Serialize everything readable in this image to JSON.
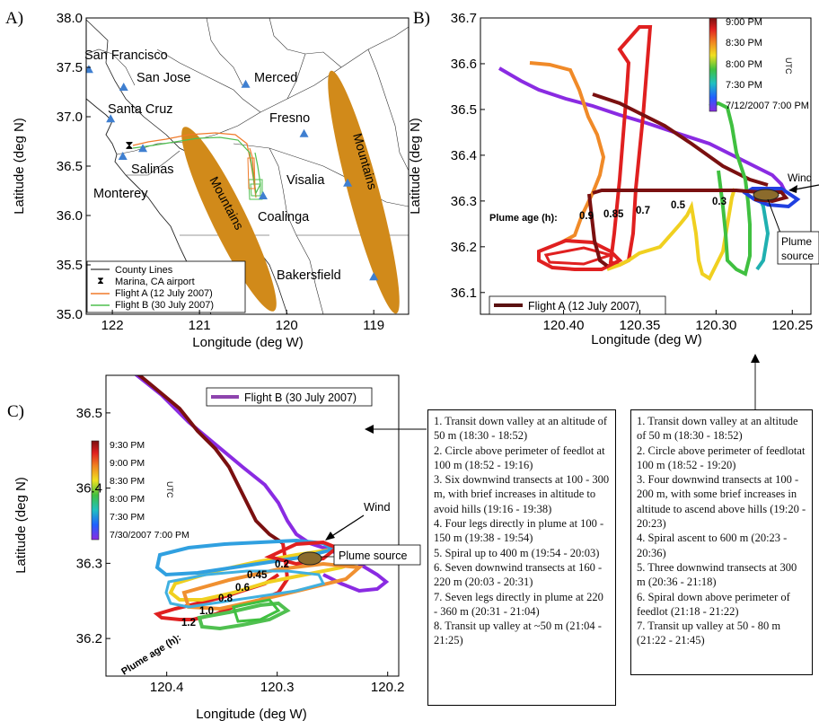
{
  "panels": {
    "A": {
      "letter": "A)",
      "xlabel": "Longitude (deg W)",
      "ylabel": "Latitude (deg N)",
      "xticks": [
        "122",
        "121",
        "120",
        "119"
      ],
      "yticks": [
        "38.0",
        "37.5",
        "37.0",
        "36.5",
        "36.0",
        "35.5",
        "35.0"
      ],
      "cities": [
        "San Francisco",
        "San Jose",
        "Merced",
        "Santa Cruz",
        "Fresno",
        "Salinas",
        "Monterey",
        "Visalia",
        "Coalinga",
        "Bakersfield"
      ],
      "mountains_label": "Mountains",
      "legend": [
        "County Lines",
        "Marina, CA airport",
        "Flight A (12 July 2007)",
        "Flight B (30 July 2007)"
      ]
    },
    "B": {
      "letter": "B)",
      "xlabel": "Longitude (deg W)",
      "ylabel": "Latitude (deg N)",
      "xticks": [
        "120.40",
        "120.35",
        "120.30",
        "120.25"
      ],
      "yticks": [
        "36.7",
        "36.6",
        "36.5",
        "36.4",
        "36.3",
        "36.2",
        "36.1"
      ],
      "colorbar_ticks": [
        "9:00 PM",
        "8:30 PM",
        "8:00 PM",
        "7:30 PM",
        "7/12/2007 7:00 PM"
      ],
      "colorbar_unit": "UTC",
      "plume_age_label": "Plume age (h):",
      "plume_ages": [
        "0.9",
        "0.85",
        "0.7",
        "0.5",
        "0.3"
      ],
      "wind_label": "Wind",
      "source_label": [
        "Plume",
        "source"
      ],
      "legend": "Flight A (12 July 2007)"
    },
    "C": {
      "letter": "C)",
      "xlabel": "Longitude (deg W)",
      "ylabel": "Latitude (deg N)",
      "xticks": [
        "120.4",
        "120.3",
        "120.2"
      ],
      "yticks": [
        "36.5",
        "36.4",
        "36.3",
        "36.2"
      ],
      "colorbar_ticks": [
        "9:30 PM",
        "9:00 PM",
        "8:30 PM",
        "8:00 PM",
        "7:30 PM",
        "7/30/2007 7:00 PM"
      ],
      "colorbar_unit": "UTC",
      "plume_age_label": "Plume age (h):",
      "plume_ages": [
        "1.2",
        "1.0",
        "0.8",
        "0.6",
        "0.45",
        "0.2"
      ],
      "wind_label": "Wind",
      "source_label": "Plume source",
      "legend": "Flight B (30 July 2007)"
    }
  },
  "notes_b": [
    "1. Transit down valley at an altitude of 50 m (18:30 - 18:52)",
    "2. Circle above perimeter of feedlot at 100 m (18:52 - 19:16)",
    "3. Six downwind transects at 100 - 300 m, with brief increases in altitude to avoid hills (19:16 - 19:38)",
    "4. Four legs directly in plume at 100 - 150 m (19:38 - 19:54)",
    "5. Spiral up to 400 m (19:54 - 20:03)",
    "6. Seven downwind transects at 160 - 220 m (20:03 - 20:31)",
    "7. Seven legs directly in plume at 220 - 360 m (20:31 - 21:04)",
    "8. Transit up valley at ~50 m (21:04 - 21:25)"
  ],
  "notes_a": [
    "1. Transit down valley at an altitude  of 50 m (18:30 - 18:52)",
    "2. Circle above perimeter of feedlotat 100 m (18:52 - 19:20)",
    "3. Four downwind transects at 100 -  200 m, with some brief increases in altitude to ascend above hills (19:20 - 20:23)",
    "4. Spiral ascent to 600 m (20:23 - 20:36)",
    "5. Three downwind transects at 300 m (20:36 - 21:18)",
    "6. Spiral down above perimeter of feedlot (21:18 - 21:22)",
    "7. Transit up valley at 50 -  80 m (21:22 - 21:45)"
  ],
  "colors": {
    "mountains": "#d18a1a",
    "flightA": "#f07a2a",
    "flightB": "#4fbf4f",
    "city": "#3f7fd0",
    "legendB": "#8e44ad",
    "legendA": "#5a1010"
  },
  "chart_data": [
    {
      "type": "scatter",
      "panel": "A",
      "xlabel": "Longitude (deg W)",
      "ylabel": "Latitude (deg N)",
      "xlim": [
        122.3,
        118.6
      ],
      "ylim": [
        35.0,
        38.0
      ],
      "series": [
        {
          "name": "San Francisco",
          "x": [
            122.27
          ],
          "y": [
            37.48
          ]
        },
        {
          "name": "San Jose",
          "x": [
            121.87
          ],
          "y": [
            37.3
          ]
        },
        {
          "name": "Santa Cruz",
          "x": [
            122.02
          ],
          "y": [
            36.98
          ]
        },
        {
          "name": "Merced",
          "x": [
            120.47
          ],
          "y": [
            37.33
          ]
        },
        {
          "name": "Fresno",
          "x": [
            119.8
          ],
          "y": [
            36.83
          ]
        },
        {
          "name": "Salinas",
          "x": [
            121.65
          ],
          "y": [
            36.68
          ]
        },
        {
          "name": "Monterey",
          "x": [
            121.88
          ],
          "y": [
            36.6
          ]
        },
        {
          "name": "Visalia",
          "x": [
            119.3
          ],
          "y": [
            36.33
          ]
        },
        {
          "name": "Coalinga",
          "x": [
            120.27
          ],
          "y": [
            36.2
          ]
        },
        {
          "name": "Bakersfield",
          "x": [
            119.0
          ],
          "y": [
            35.38
          ]
        }
      ]
    },
    {
      "type": "line",
      "panel": "B",
      "xlabel": "Longitude (deg W)",
      "ylabel": "Latitude (deg N)",
      "xlim": [
        120.45,
        120.24
      ],
      "ylim": [
        36.06,
        36.7
      ],
      "series": [
        {
          "name": "Flight A (12 July 2007)",
          "x": [
            120.45,
            120.37,
            120.3,
            120.26,
            120.25,
            120.28,
            120.35,
            120.38,
            120.4,
            120.42,
            120.39,
            120.36
          ],
          "y": [
            36.57,
            36.5,
            36.4,
            36.31,
            36.3,
            36.31,
            36.32,
            36.32,
            36.2,
            36.16,
            36.15,
            36.17
          ]
        }
      ]
    },
    {
      "type": "line",
      "panel": "C",
      "xlabel": "Longitude (deg W)",
      "ylabel": "Latitude (deg N)",
      "xlim": [
        120.45,
        120.19
      ],
      "ylim": [
        36.16,
        36.55
      ],
      "series": [
        {
          "name": "Flight B (30 July 2007)",
          "x": [
            120.42,
            120.35,
            120.3,
            120.27,
            120.26,
            120.3,
            120.34,
            120.38,
            120.4
          ],
          "y": [
            36.54,
            36.47,
            36.4,
            36.34,
            36.3,
            36.29,
            36.26,
            36.24,
            36.22
          ]
        }
      ]
    }
  ]
}
